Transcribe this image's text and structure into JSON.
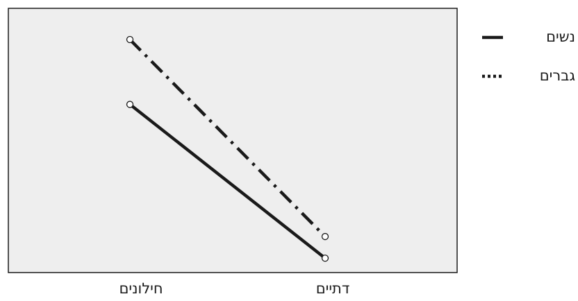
{
  "chart_data": {
    "type": "line",
    "categories": [
      "חילונים",
      "דתיים"
    ],
    "series": [
      {
        "name": "נשים",
        "values": [
          0.7,
          0.06
        ],
        "style": "solid",
        "color": "#1a1a1a"
      },
      {
        "name": "גברים",
        "values": [
          0.97,
          0.15
        ],
        "style": "dashdot",
        "color": "#1a1a1a"
      }
    ],
    "ylim": [
      0,
      1.1
    ],
    "y_axis_labels_shown": false,
    "grid": false,
    "plot_background": "#eeeeee",
    "legend": {
      "placement": "right",
      "entries": [
        {
          "label": "נשים",
          "marker": "solid"
        },
        {
          "label": "גברים",
          "marker": "dotted"
        }
      ]
    }
  }
}
